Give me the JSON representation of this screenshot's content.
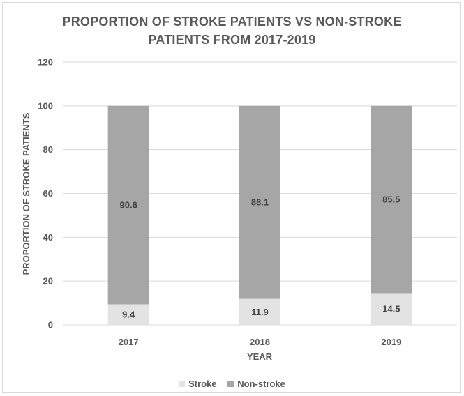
{
  "chart_data": {
    "type": "bar",
    "stacked": true,
    "title_line1": "PROPORTION OF STROKE PATIENTS VS NON-STROKE",
    "title_line2": "PATIENTS FROM 2017-2019",
    "xlabel": "YEAR",
    "ylabel": "PROPORTION OF STROKE PATIENTS",
    "categories": [
      "2017",
      "2018",
      "2019"
    ],
    "ylim": [
      0,
      120
    ],
    "yticks": [
      0,
      20,
      40,
      60,
      80,
      100,
      120
    ],
    "grid": true,
    "legend_position": "bottom",
    "series": [
      {
        "name": "Stroke",
        "values": [
          9.4,
          11.9,
          14.5
        ],
        "color": "#e3e3e3"
      },
      {
        "name": "Non-stroke",
        "values": [
          90.6,
          88.1,
          85.5
        ],
        "color": "#a6a6a6"
      }
    ]
  }
}
